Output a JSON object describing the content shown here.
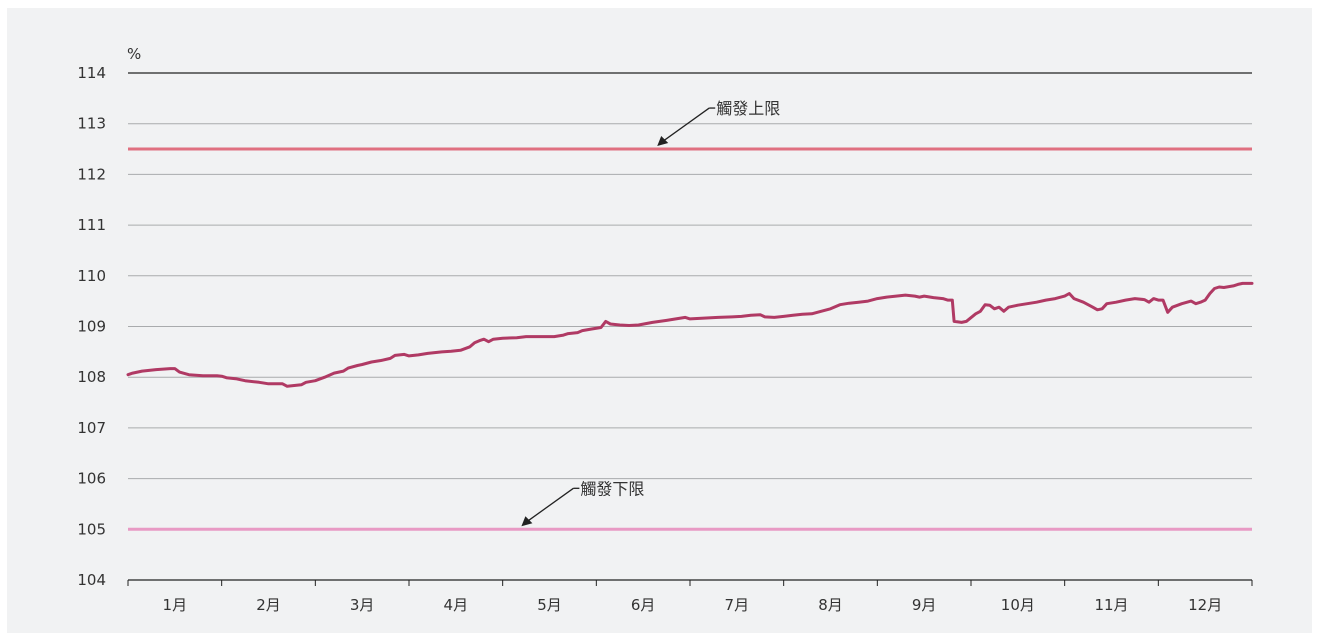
{
  "chart_data": {
    "type": "line",
    "ylabel": "%",
    "ylim": [
      104,
      114
    ],
    "yticks": [
      "114",
      "113",
      "112",
      "111",
      "110",
      "109",
      "108",
      "107",
      "106",
      "105",
      "104"
    ],
    "categories": [
      "1月",
      "2月",
      "3月",
      "4月",
      "5月",
      "6月",
      "7月",
      "8月",
      "9月",
      "10月",
      "11月",
      "12月"
    ],
    "x_range": [
      0,
      12
    ],
    "grid": true,
    "reference_lines": [
      {
        "label": "觸發上限",
        "value": 112.5,
        "color": "#e07080"
      },
      {
        "label": "觸發下限",
        "value": 105.0,
        "color": "#e89ac4"
      }
    ],
    "series": [
      {
        "color": "#b03a64",
        "points": [
          [
            0.0,
            108.05
          ],
          [
            0.05,
            108.08
          ],
          [
            0.15,
            108.12
          ],
          [
            0.3,
            108.15
          ],
          [
            0.45,
            108.17
          ],
          [
            0.5,
            108.17
          ],
          [
            0.55,
            108.1
          ],
          [
            0.65,
            108.05
          ],
          [
            0.8,
            108.03
          ],
          [
            0.95,
            108.03
          ],
          [
            1.0,
            108.02
          ],
          [
            1.05,
            107.99
          ],
          [
            1.15,
            107.97
          ],
          [
            1.25,
            107.93
          ],
          [
            1.4,
            107.9
          ],
          [
            1.5,
            107.87
          ],
          [
            1.65,
            107.87
          ],
          [
            1.7,
            107.82
          ],
          [
            1.85,
            107.85
          ],
          [
            1.9,
            107.9
          ],
          [
            2.0,
            107.93
          ],
          [
            2.1,
            108.0
          ],
          [
            2.2,
            108.08
          ],
          [
            2.3,
            108.12
          ],
          [
            2.35,
            108.18
          ],
          [
            2.45,
            108.23
          ],
          [
            2.5,
            108.25
          ],
          [
            2.6,
            108.3
          ],
          [
            2.7,
            108.33
          ],
          [
            2.8,
            108.37
          ],
          [
            2.85,
            108.43
          ],
          [
            2.95,
            108.45
          ],
          [
            3.0,
            108.42
          ],
          [
            3.1,
            108.44
          ],
          [
            3.2,
            108.47
          ],
          [
            3.35,
            108.5
          ],
          [
            3.45,
            108.51
          ],
          [
            3.55,
            108.53
          ],
          [
            3.65,
            108.6
          ],
          [
            3.7,
            108.68
          ],
          [
            3.75,
            108.72
          ],
          [
            3.8,
            108.75
          ],
          [
            3.85,
            108.7
          ],
          [
            3.9,
            108.75
          ],
          [
            4.0,
            108.77
          ],
          [
            4.15,
            108.78
          ],
          [
            4.25,
            108.8
          ],
          [
            4.4,
            108.8
          ],
          [
            4.55,
            108.8
          ],
          [
            4.65,
            108.83
          ],
          [
            4.7,
            108.86
          ],
          [
            4.8,
            108.88
          ],
          [
            4.85,
            108.92
          ],
          [
            4.95,
            108.95
          ],
          [
            5.05,
            108.98
          ],
          [
            5.1,
            109.1
          ],
          [
            5.15,
            109.05
          ],
          [
            5.25,
            109.03
          ],
          [
            5.35,
            109.02
          ],
          [
            5.45,
            109.03
          ],
          [
            5.6,
            109.08
          ],
          [
            5.75,
            109.12
          ],
          [
            5.85,
            109.15
          ],
          [
            5.95,
            109.18
          ],
          [
            6.0,
            109.15
          ],
          [
            6.1,
            109.16
          ],
          [
            6.2,
            109.17
          ],
          [
            6.3,
            109.18
          ],
          [
            6.45,
            109.19
          ],
          [
            6.55,
            109.2
          ],
          [
            6.65,
            109.22
          ],
          [
            6.75,
            109.23
          ],
          [
            6.8,
            109.19
          ],
          [
            6.9,
            109.18
          ],
          [
            7.0,
            109.2
          ],
          [
            7.1,
            109.22
          ],
          [
            7.2,
            109.24
          ],
          [
            7.3,
            109.25
          ],
          [
            7.4,
            109.3
          ],
          [
            7.5,
            109.35
          ],
          [
            7.6,
            109.43
          ],
          [
            7.7,
            109.46
          ],
          [
            7.8,
            109.48
          ],
          [
            7.9,
            109.5
          ],
          [
            8.0,
            109.55
          ],
          [
            8.1,
            109.58
          ],
          [
            8.2,
            109.6
          ],
          [
            8.3,
            109.62
          ],
          [
            8.4,
            109.6
          ],
          [
            8.45,
            109.58
          ],
          [
            8.5,
            109.6
          ],
          [
            8.6,
            109.57
          ],
          [
            8.7,
            109.55
          ],
          [
            8.75,
            109.52
          ],
          [
            8.8,
            109.52
          ],
          [
            8.82,
            109.1
          ],
          [
            8.9,
            109.08
          ],
          [
            8.95,
            109.1
          ],
          [
            9.05,
            109.25
          ],
          [
            9.1,
            109.3
          ],
          [
            9.15,
            109.43
          ],
          [
            9.2,
            109.42
          ],
          [
            9.25,
            109.35
          ],
          [
            9.3,
            109.38
          ],
          [
            9.35,
            109.3
          ],
          [
            9.4,
            109.38
          ],
          [
            9.5,
            109.42
          ],
          [
            9.6,
            109.45
          ],
          [
            9.7,
            109.48
          ],
          [
            9.8,
            109.52
          ],
          [
            9.9,
            109.55
          ],
          [
            10.0,
            109.6
          ],
          [
            10.05,
            109.65
          ],
          [
            10.1,
            109.55
          ],
          [
            10.2,
            109.48
          ],
          [
            10.3,
            109.38
          ],
          [
            10.35,
            109.33
          ],
          [
            10.4,
            109.35
          ],
          [
            10.45,
            109.45
          ],
          [
            10.55,
            109.48
          ],
          [
            10.65,
            109.52
          ],
          [
            10.75,
            109.55
          ],
          [
            10.85,
            109.53
          ],
          [
            10.9,
            109.48
          ],
          [
            10.95,
            109.55
          ],
          [
            11.0,
            109.52
          ],
          [
            11.05,
            109.52
          ],
          [
            11.1,
            109.28
          ],
          [
            11.15,
            109.38
          ],
          [
            11.25,
            109.45
          ],
          [
            11.35,
            109.5
          ],
          [
            11.4,
            109.45
          ],
          [
            11.45,
            109.48
          ],
          [
            11.5,
            109.52
          ],
          [
            11.55,
            109.65
          ],
          [
            11.6,
            109.75
          ],
          [
            11.65,
            109.78
          ],
          [
            11.7,
            109.77
          ],
          [
            11.8,
            109.8
          ],
          [
            11.85,
            109.83
          ],
          [
            11.9,
            109.85
          ],
          [
            12.0,
            109.85
          ]
        ]
      }
    ]
  }
}
